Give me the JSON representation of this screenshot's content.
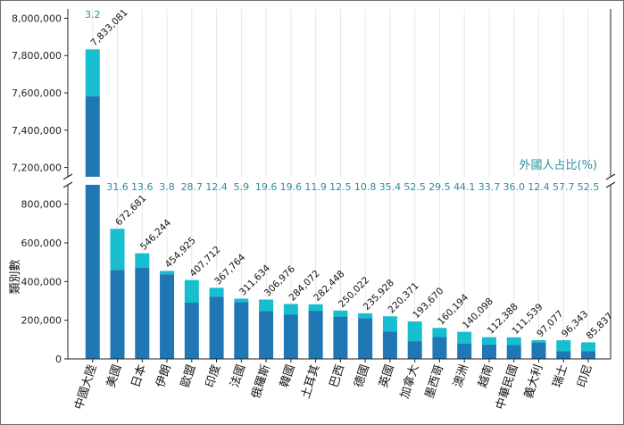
{
  "chart_data": {
    "type": "bar",
    "stacked": true,
    "broken_y_axis": true,
    "ylabel": "類別數",
    "annotation_label": "外國人占比(%)",
    "colors": {
      "domestic": "#1f77b4",
      "foreign": "#17becf",
      "pct_text": "#2a8f9c",
      "highlight": "#9b30d9"
    },
    "highlight_category": "中華民國",
    "grid": "vertical light",
    "ylim_lower": [
      0,
      900000
    ],
    "ylim_upper": [
      7150000,
      8050000
    ],
    "yticks_lower": [
      "0",
      "200,000",
      "400,000",
      "600,000",
      "800,000"
    ],
    "yticks_upper": [
      "7,200,000",
      "7,400,000",
      "7,600,000",
      "7,800,000",
      "8,000,000"
    ],
    "categories": [
      "中國大陸",
      "美國",
      "日本",
      "伊朗",
      "歐盟",
      "印度",
      "法國",
      "俄羅斯",
      "韓國",
      "土耳其",
      "巴西",
      "德國",
      "英國",
      "加拿大",
      "墨西哥",
      "澳洲",
      "越南",
      "中華民國",
      "義大利",
      "瑞士",
      "印尼"
    ],
    "totals": [
      7833081,
      672681,
      546244,
      454925,
      407712,
      367764,
      311634,
      306976,
      284072,
      282448,
      250022,
      235928,
      220371,
      193670,
      160194,
      140098,
      112388,
      111539,
      97077,
      96343,
      85837
    ],
    "total_labels": [
      "7,833,081",
      "672,681",
      "546,244",
      "454,925",
      "407,712",
      "367,764",
      "311,634",
      "306,976",
      "284,072",
      "282,448",
      "250,022",
      "235,928",
      "220,371",
      "193,670",
      "160,194",
      "140,098",
      "112,388",
      "111,539",
      "97,077",
      "96,343",
      "85,837"
    ],
    "foreign_pct": [
      3.2,
      31.6,
      13.6,
      3.8,
      28.7,
      12.4,
      5.9,
      19.6,
      19.6,
      11.9,
      12.5,
      10.8,
      35.4,
      52.5,
      29.5,
      44.1,
      33.7,
      36.0,
      12.4,
      57.7,
      52.5
    ],
    "foreign_pct_labels": [
      "3.2",
      "31.6",
      "13.6",
      "3.8",
      "28.7",
      "12.4",
      "5.9",
      "19.6",
      "19.6",
      "11.9",
      "12.5",
      "10.8",
      "35.4",
      "52.5",
      "29.5",
      "44.1",
      "33.7",
      "36.0",
      "12.4",
      "57.7",
      "52.5"
    ]
  }
}
